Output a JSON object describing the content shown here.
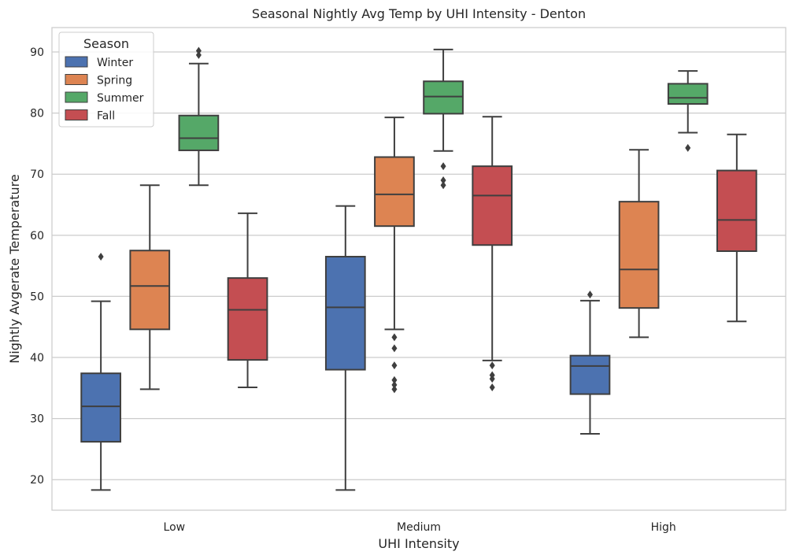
{
  "chart_data": {
    "type": "box",
    "title": "Seasonal Nightly Avg Temp by UHI Intensity - Denton",
    "xlabel": "UHI Intensity",
    "ylabel": "Nightly Avgerate Temperature",
    "categories": [
      "Low",
      "Medium",
      "High"
    ],
    "ylim": [
      15,
      94
    ],
    "yticks": [
      20,
      30,
      40,
      50,
      60,
      70,
      80,
      90
    ],
    "grid": true,
    "legend": {
      "title": "Season",
      "placement": "top-left"
    },
    "series": [
      {
        "name": "Winter",
        "color": "#4c72b0",
        "boxes": [
          {
            "whisker_low": 18.3,
            "q1": 26.2,
            "median": 32.0,
            "q3": 37.4,
            "whisker_high": 49.2,
            "outliers": [
              56.5
            ]
          },
          {
            "whisker_low": 18.3,
            "q1": 38.0,
            "median": 48.2,
            "q3": 56.5,
            "whisker_high": 64.8,
            "outliers": []
          },
          {
            "whisker_low": 27.5,
            "q1": 34.0,
            "median": 38.6,
            "q3": 40.3,
            "whisker_high": 49.3,
            "outliers": [
              50.3
            ]
          }
        ]
      },
      {
        "name": "Spring",
        "color": "#dd8452",
        "boxes": [
          {
            "whisker_low": 34.8,
            "q1": 44.6,
            "median": 51.7,
            "q3": 57.5,
            "whisker_high": 68.2,
            "outliers": []
          },
          {
            "whisker_low": 44.6,
            "q1": 61.5,
            "median": 66.7,
            "q3": 72.8,
            "whisker_high": 79.3,
            "outliers": [
              43.3,
              41.5,
              38.7,
              36.3,
              35.5,
              34.8
            ]
          },
          {
            "whisker_low": 43.3,
            "q1": 48.1,
            "median": 54.4,
            "q3": 65.5,
            "whisker_high": 74.0,
            "outliers": []
          }
        ]
      },
      {
        "name": "Summer",
        "color": "#55a868",
        "boxes": [
          {
            "whisker_low": 68.2,
            "q1": 73.9,
            "median": 75.9,
            "q3": 79.6,
            "whisker_high": 88.1,
            "outliers": [
              89.5,
              90.2
            ]
          },
          {
            "whisker_low": 73.8,
            "q1": 79.9,
            "median": 82.7,
            "q3": 85.2,
            "whisker_high": 90.4,
            "outliers": [
              71.3,
              69.0,
              68.2
            ]
          },
          {
            "whisker_low": 76.8,
            "q1": 81.5,
            "median": 82.5,
            "q3": 84.8,
            "whisker_high": 86.9,
            "outliers": [
              74.3
            ]
          }
        ]
      },
      {
        "name": "Fall",
        "color": "#c44e52",
        "boxes": [
          {
            "whisker_low": 35.1,
            "q1": 39.6,
            "median": 47.8,
            "q3": 53.0,
            "whisker_high": 63.6,
            "outliers": []
          },
          {
            "whisker_low": 39.5,
            "q1": 58.4,
            "median": 66.5,
            "q3": 71.3,
            "whisker_high": 79.4,
            "outliers": [
              38.7,
              37.1,
              36.5,
              35.1
            ]
          },
          {
            "whisker_low": 45.9,
            "q1": 57.4,
            "median": 62.5,
            "q3": 70.6,
            "whisker_high": 76.5,
            "outliers": []
          }
        ]
      }
    ]
  }
}
